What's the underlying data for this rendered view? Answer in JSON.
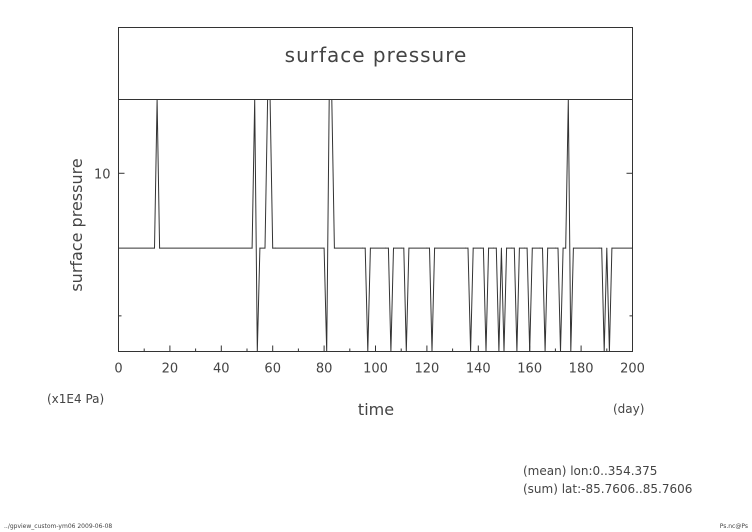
{
  "chart_data": {
    "type": "line",
    "title": "surface pressure",
    "xlabel": "time",
    "ylabel": "surface pressure",
    "x_unit": "(day)",
    "y_unit": "(x1E4 Pa)",
    "xlim": [
      0,
      200
    ],
    "ylim": [
      5.0,
      12.07
    ],
    "xticks": [
      0,
      20,
      40,
      60,
      80,
      100,
      120,
      140,
      160,
      180,
      200
    ],
    "yticks": [
      10
    ],
    "grid": false,
    "series": [
      {
        "x": [
          0,
          14,
          15,
          16,
          52,
          53,
          54,
          55,
          57,
          58,
          59,
          60,
          61,
          80,
          81,
          82,
          83,
          84,
          95,
          96,
          97,
          98,
          104,
          105,
          106,
          107,
          110,
          111,
          112,
          113,
          120,
          121,
          122,
          123,
          135,
          136,
          137,
          138,
          141,
          142,
          143,
          144,
          146,
          147,
          148,
          149,
          150,
          151,
          153,
          154,
          155,
          156,
          158,
          159,
          160,
          161,
          164,
          165,
          166,
          167,
          170,
          171,
          172,
          173,
          174,
          175,
          176,
          177,
          187,
          188,
          189,
          190,
          191,
          192,
          200
        ],
        "values": [
          7.9,
          7.9,
          12.07,
          7.9,
          7.9,
          12.07,
          5.0,
          7.9,
          7.9,
          12.07,
          12.07,
          7.9,
          7.9,
          7.9,
          5.0,
          12.07,
          12.07,
          7.9,
          7.9,
          7.9,
          5.0,
          7.9,
          7.9,
          7.9,
          5.0,
          7.9,
          7.9,
          7.9,
          5.0,
          7.9,
          7.9,
          7.9,
          5.0,
          7.9,
          7.9,
          7.9,
          5.0,
          7.9,
          7.9,
          7.9,
          5.0,
          7.9,
          7.9,
          7.9,
          5.0,
          7.9,
          5.0,
          7.9,
          7.9,
          7.9,
          5.0,
          7.9,
          7.9,
          7.9,
          5.0,
          7.9,
          7.9,
          7.9,
          5.0,
          7.9,
          7.9,
          7.9,
          5.0,
          7.9,
          7.9,
          12.07,
          5.0,
          7.9,
          7.9,
          7.9,
          5.0,
          7.9,
          5.0,
          7.9,
          7.9
        ]
      }
    ]
  },
  "annotations": {
    "line1": "(mean) lon:0..354.375",
    "line2": "(sum) lat:-85.7606..85.7606"
  },
  "footer": {
    "left": "../gpview_custom-ym06  2009-06-08",
    "right": "Ps.nc@Ps"
  }
}
